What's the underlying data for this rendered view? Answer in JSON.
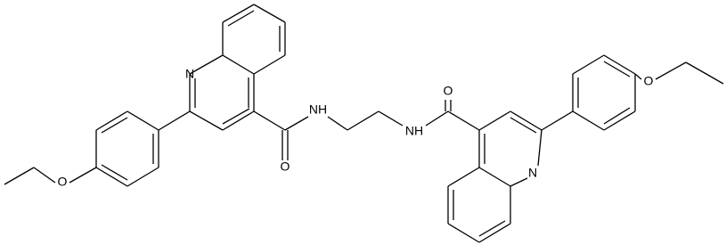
{
  "atoms": [
    {
      "label": "N"
    },
    {
      "label": "O"
    },
    {
      "label": "NH"
    },
    {
      "label": "O"
    },
    {
      "label": "O"
    },
    {
      "label": "NH"
    },
    {
      "label": "N"
    },
    {
      "label": "O"
    }
  ]
}
